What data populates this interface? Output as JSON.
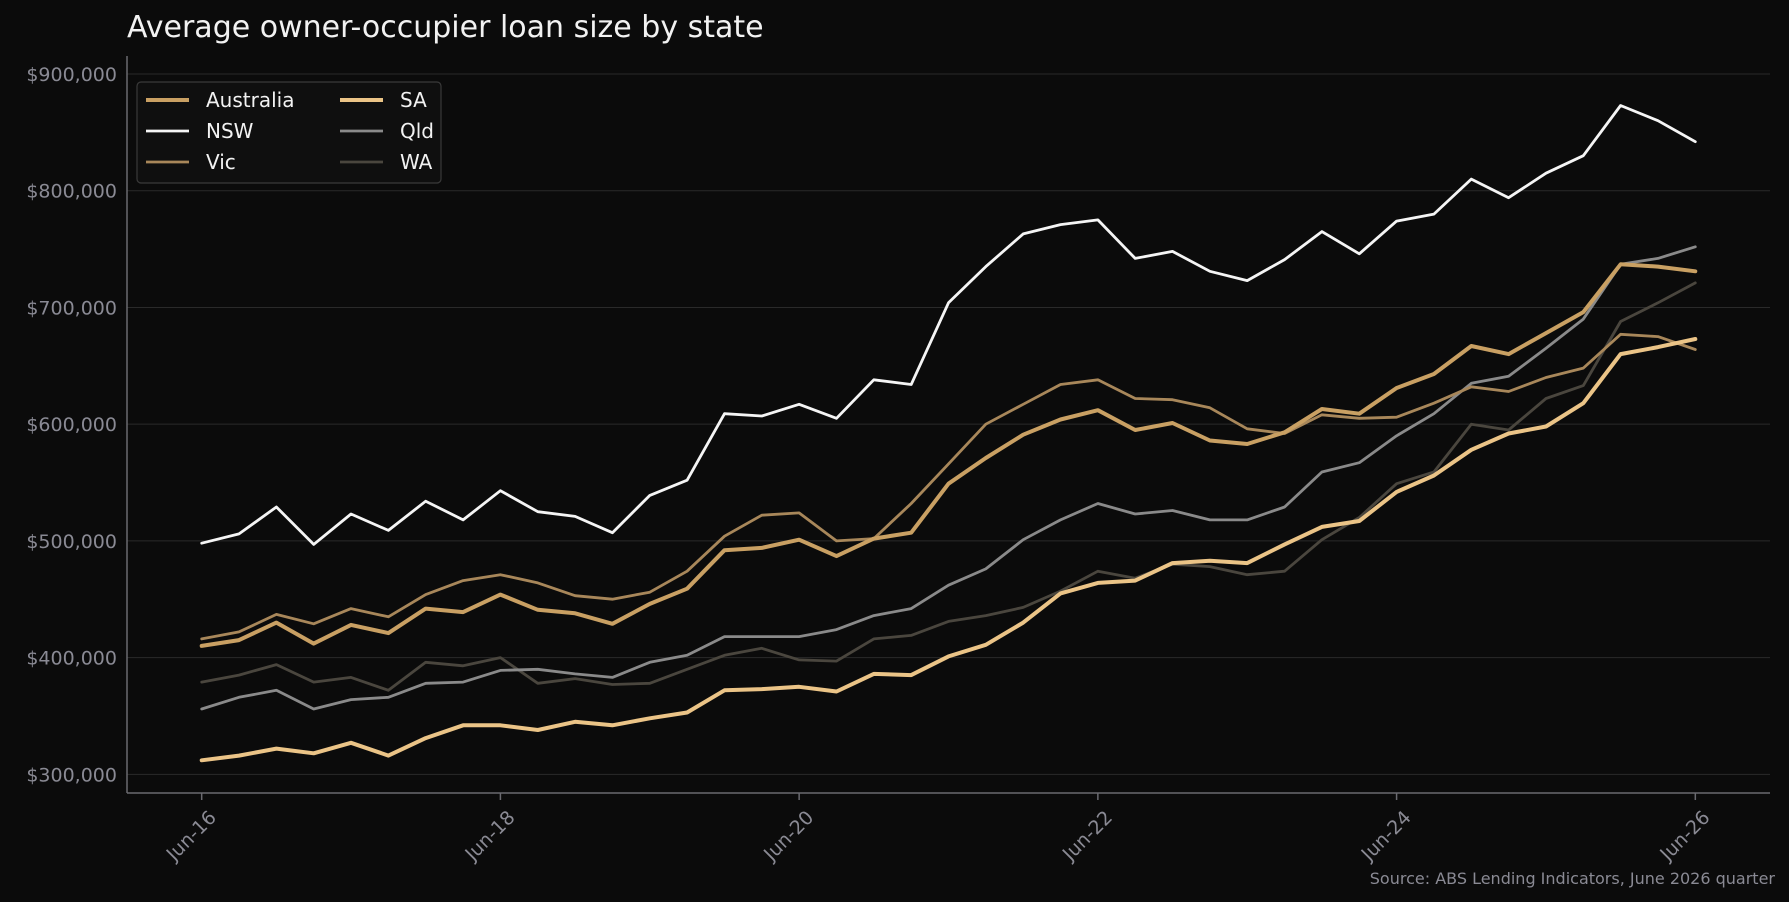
{
  "chart_data": {
    "type": "line",
    "title": "Average owner-occupier loan size by state",
    "xlabel": "",
    "ylabel": "",
    "source": "Source: ABS Lending Indicators, June 2026 quarter",
    "x": [
      "Jun-16",
      "Sep-16",
      "Dec-16",
      "Mar-17",
      "Jun-17",
      "Sep-17",
      "Dec-17",
      "Mar-18",
      "Jun-18",
      "Sep-18",
      "Dec-18",
      "Mar-19",
      "Jun-19",
      "Sep-19",
      "Dec-19",
      "Mar-20",
      "Jun-20",
      "Sep-20",
      "Dec-20",
      "Mar-21",
      "Jun-21",
      "Sep-21",
      "Dec-21",
      "Mar-22",
      "Jun-22",
      "Sep-22",
      "Dec-22",
      "Mar-23",
      "Jun-23",
      "Sep-23",
      "Dec-23",
      "Mar-24",
      "Jun-24",
      "Sep-24",
      "Dec-24",
      "Mar-25",
      "Jun-25",
      "Sep-25",
      "Dec-25",
      "Mar-26",
      "Jun-26"
    ],
    "xticks": [
      "Jun-16",
      "Jun-18",
      "Jun-20",
      "Jun-22",
      "Jun-24",
      "Jun-26"
    ],
    "xtick_indices": [
      0,
      8,
      16,
      24,
      32,
      40
    ],
    "yticks": [
      "$300,000",
      "$400,000",
      "$500,000",
      "$600,000",
      "$700,000",
      "$800,000",
      "$900,000"
    ],
    "ytick_values": [
      300000,
      400000,
      500000,
      600000,
      700000,
      800000,
      900000
    ],
    "ylim": [
      284000,
      912000
    ],
    "xlim": [
      -2,
      42
    ],
    "grid": "horizontal",
    "legend_position": "top-left",
    "series": [
      {
        "name": "Australia",
        "color": "#c9a063",
        "width": 4,
        "values": [
          410000,
          415000,
          430000,
          412000,
          428000,
          421000,
          442000,
          439000,
          454000,
          441000,
          438000,
          429000,
          446000,
          459000,
          492000,
          494000,
          501000,
          487000,
          502000,
          507000,
          549000,
          571000,
          591000,
          604000,
          612000,
          595000,
          601000,
          586000,
          583000,
          593000,
          613000,
          609000,
          631000,
          643000,
          667000,
          660000,
          678000,
          696000,
          737000,
          735000,
          731000
        ]
      },
      {
        "name": "NSW",
        "color": "#f5f5f5",
        "width": 2.8,
        "values": [
          498000,
          506000,
          529000,
          497000,
          523000,
          509000,
          534000,
          518000,
          543000,
          525000,
          521000,
          507000,
          539000,
          552000,
          609000,
          607000,
          617000,
          605000,
          638000,
          634000,
          704000,
          735000,
          763000,
          771000,
          775000,
          742000,
          748000,
          731000,
          723000,
          741000,
          765000,
          746000,
          774000,
          780000,
          810000,
          794000,
          815000,
          830000,
          873000,
          860000,
          842000
        ]
      },
      {
        "name": "Vic",
        "color": "#a8875a",
        "width": 2.8,
        "values": [
          416000,
          422000,
          437000,
          429000,
          442000,
          435000,
          454000,
          466000,
          471000,
          464000,
          453000,
          450000,
          456000,
          474000,
          504000,
          522000,
          524000,
          500000,
          502000,
          532000,
          566000,
          600000,
          617000,
          634000,
          638000,
          622000,
          621000,
          614000,
          596000,
          592000,
          608000,
          605000,
          606000,
          618000,
          632000,
          628000,
          640000,
          648000,
          677000,
          675000,
          664000
        ]
      },
      {
        "name": "SA",
        "color": "#ebc487",
        "width": 4,
        "values": [
          312000,
          316000,
          322000,
          318000,
          327000,
          316000,
          331000,
          342000,
          342000,
          338000,
          345000,
          342000,
          348000,
          353000,
          372000,
          373000,
          375000,
          371000,
          386000,
          385000,
          401000,
          411000,
          430000,
          455000,
          464000,
          466000,
          481000,
          483000,
          481000,
          497000,
          512000,
          517000,
          542000,
          556000,
          578000,
          592000,
          598000,
          618000,
          660000,
          666000,
          673000
        ]
      },
      {
        "name": "Qld",
        "color": "#8a8a8a",
        "width": 2.8,
        "values": [
          356000,
          366000,
          372000,
          356000,
          364000,
          366000,
          378000,
          379000,
          389000,
          390000,
          386000,
          383000,
          396000,
          402000,
          418000,
          418000,
          418000,
          424000,
          436000,
          442000,
          462000,
          476000,
          501000,
          518000,
          532000,
          523000,
          526000,
          518000,
          518000,
          529000,
          559000,
          567000,
          590000,
          609000,
          635000,
          641000,
          665000,
          690000,
          737000,
          742000,
          752000
        ]
      },
      {
        "name": "WA",
        "color": "#4a463e",
        "width": 2.8,
        "values": [
          379000,
          385000,
          394000,
          379000,
          383000,
          372000,
          396000,
          393000,
          400000,
          378000,
          382000,
          377000,
          378000,
          390000,
          402000,
          408000,
          398000,
          397000,
          416000,
          419000,
          431000,
          436000,
          443000,
          457000,
          474000,
          468000,
          480000,
          478000,
          471000,
          474000,
          501000,
          520000,
          549000,
          559000,
          600000,
          595000,
          622000,
          633000,
          688000,
          704000,
          721000
        ]
      }
    ]
  }
}
